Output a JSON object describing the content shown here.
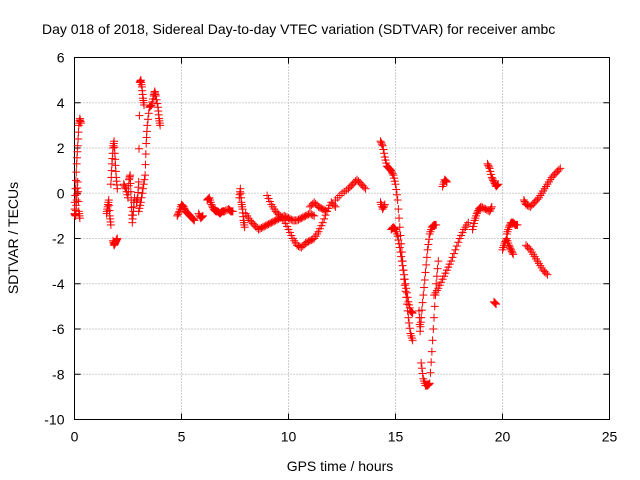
{
  "chart_data": {
    "type": "scatter",
    "title": "Day 018 of 2018, Sidereal Day-to-day VTEC variation (SDTVAR) for receiver ambc",
    "xlabel": "GPS time / hours",
    "ylabel": "SDTVAR / TECUs",
    "xlim": [
      0,
      25
    ],
    "ylim": [
      -10,
      6
    ],
    "xticks": [
      0,
      5,
      10,
      15,
      20,
      25
    ],
    "yticks": [
      -10,
      -8,
      -6,
      -4,
      -2,
      0,
      2,
      4,
      6
    ],
    "grid": true,
    "marker": "+",
    "color": "#ff0000",
    "series": [
      {
        "name": "SDTVAR",
        "segments": [
          [
            [
              0.0,
              -0.7
            ],
            [
              0.05,
              0.2
            ],
            [
              0.1,
              1.3
            ],
            [
              0.15,
              2.1
            ],
            [
              0.2,
              3.0
            ],
            [
              0.25,
              3.3
            ],
            [
              0.3,
              3.1
            ]
          ],
          [
            [
              0.0,
              -0.9
            ],
            [
              0.05,
              -1.0
            ],
            [
              0.1,
              -0.3
            ],
            [
              0.15,
              0.5
            ],
            [
              0.2,
              -0.8
            ],
            [
              0.25,
              -1.1
            ]
          ],
          [
            [
              1.5,
              -0.9
            ],
            [
              1.55,
              -0.6
            ],
            [
              1.6,
              -0.3
            ],
            [
              1.65,
              -1.0
            ],
            [
              1.7,
              -1.4
            ]
          ],
          [
            [
              1.7,
              0.4
            ],
            [
              1.75,
              1.3
            ],
            [
              1.8,
              2.0
            ],
            [
              1.85,
              2.3
            ],
            [
              1.9,
              1.5
            ],
            [
              1.95,
              0.7
            ],
            [
              2.0,
              0.2
            ]
          ],
          [
            [
              1.8,
              -2.1
            ],
            [
              1.85,
              -2.3
            ],
            [
              1.9,
              -2.2
            ],
            [
              1.95,
              -2.1
            ],
            [
              2.0,
              -2.0
            ]
          ],
          [
            [
              2.3,
              0.4
            ],
            [
              2.4,
              0.2
            ],
            [
              2.5,
              -0.2
            ],
            [
              2.55,
              0.6
            ],
            [
              2.6,
              0.8
            ],
            [
              2.65,
              -0.3
            ],
            [
              2.7,
              -1.3
            ],
            [
              2.75,
              -0.8
            ],
            [
              2.8,
              -0.2
            ]
          ],
          [
            [
              2.9,
              -0.4
            ],
            [
              2.95,
              -0.2
            ],
            [
              3.0,
              0.5
            ],
            [
              3.05,
              4.9
            ],
            [
              3.1,
              5.0
            ],
            [
              3.15,
              4.7
            ],
            [
              3.2,
              4.2
            ],
            [
              3.25,
              3.9
            ]
          ],
          [
            [
              3.0,
              -0.8
            ],
            [
              3.1,
              -0.4
            ],
            [
              3.2,
              0.2
            ],
            [
              3.3,
              0.8
            ],
            [
              3.35,
              2.2
            ],
            [
              3.4,
              3.0
            ],
            [
              3.5,
              3.8
            ],
            [
              3.6,
              3.9
            ],
            [
              3.7,
              4.3
            ],
            [
              3.75,
              4.5
            ],
            [
              3.8,
              4.3
            ],
            [
              3.9,
              3.8
            ],
            [
              3.95,
              3.3
            ],
            [
              4.0,
              3.0
            ]
          ],
          [
            [
              4.8,
              -1.0
            ],
            [
              4.9,
              -0.8
            ],
            [
              5.0,
              -0.5
            ],
            [
              5.1,
              -0.6
            ],
            [
              5.2,
              -0.8
            ],
            [
              5.3,
              -0.9
            ],
            [
              5.4,
              -1.0
            ],
            [
              5.5,
              -1.1
            ],
            [
              5.6,
              -1.2
            ]
          ],
          [
            [
              5.8,
              -0.9
            ],
            [
              5.9,
              -1.1
            ],
            [
              6.0,
              -1.0
            ]
          ],
          [
            [
              6.2,
              -0.3
            ],
            [
              6.3,
              -0.2
            ],
            [
              6.4,
              -0.5
            ],
            [
              6.5,
              -0.7
            ],
            [
              6.6,
              -0.8
            ],
            [
              6.7,
              -0.8
            ],
            [
              6.8,
              -0.9
            ],
            [
              6.9,
              -0.8
            ],
            [
              7.0,
              -0.8
            ],
            [
              7.2,
              -0.7
            ],
            [
              7.3,
              -0.8
            ],
            [
              7.4,
              -0.8
            ]
          ],
          [
            [
              7.7,
              -0.2
            ],
            [
              7.75,
              0.2
            ],
            [
              7.8,
              -0.4
            ],
            [
              7.85,
              -0.7
            ],
            [
              7.9,
              -1.2
            ],
            [
              7.95,
              -1.5
            ]
          ],
          [
            [
              8.0,
              -0.9
            ],
            [
              8.2,
              -1.2
            ],
            [
              8.4,
              -1.4
            ],
            [
              8.6,
              -1.6
            ],
            [
              8.8,
              -1.5
            ],
            [
              9.0,
              -1.4
            ],
            [
              9.2,
              -1.3
            ],
            [
              9.4,
              -1.2
            ],
            [
              9.6,
              -1.1
            ],
            [
              9.8,
              -1.0
            ],
            [
              10.0,
              -1.1
            ],
            [
              10.2,
              -1.2
            ],
            [
              10.4,
              -1.2
            ],
            [
              10.6,
              -1.1
            ],
            [
              10.8,
              -1.0
            ],
            [
              11.0,
              -0.9
            ],
            [
              11.2,
              -1.0
            ]
          ],
          [
            [
              9.0,
              -0.1
            ],
            [
              9.2,
              -0.5
            ],
            [
              9.4,
              -0.8
            ],
            [
              9.6,
              -1.0
            ],
            [
              9.8,
              -1.2
            ],
            [
              10.0,
              -1.6
            ],
            [
              10.2,
              -2.0
            ],
            [
              10.4,
              -2.3
            ],
            [
              10.6,
              -2.4
            ],
            [
              10.8,
              -2.2
            ],
            [
              11.0,
              -2.1
            ],
            [
              11.2,
              -2.0
            ],
            [
              11.4,
              -1.7
            ],
            [
              11.6,
              -1.3
            ],
            [
              11.8,
              -0.8
            ],
            [
              12.0,
              -0.4
            ],
            [
              12.2,
              -0.6
            ]
          ],
          [
            [
              11.0,
              -0.6
            ],
            [
              11.2,
              -0.4
            ],
            [
              11.4,
              -0.6
            ],
            [
              11.6,
              -0.7
            ],
            [
              11.8,
              -0.8
            ]
          ],
          [
            [
              12.2,
              -0.3
            ],
            [
              12.5,
              0.0
            ],
            [
              12.8,
              0.2
            ],
            [
              13.0,
              0.4
            ],
            [
              13.2,
              0.6
            ],
            [
              13.4,
              0.4
            ],
            [
              13.6,
              0.2
            ]
          ],
          [
            [
              14.3,
              2.3
            ],
            [
              14.4,
              2.1
            ],
            [
              14.5,
              1.6
            ],
            [
              14.6,
              1.2
            ],
            [
              14.7,
              1.1
            ],
            [
              14.8,
              1.0
            ],
            [
              14.9,
              0.8
            ],
            [
              15.0,
              0.4
            ],
            [
              15.1,
              -0.3
            ],
            [
              15.2,
              -1.5
            ],
            [
              15.3,
              -2.6
            ],
            [
              15.4,
              -3.8
            ],
            [
              15.5,
              -4.6
            ],
            [
              15.6,
              -5.5
            ],
            [
              15.7,
              -6.2
            ],
            [
              15.8,
              -6.5
            ]
          ],
          [
            [
              14.3,
              -0.4
            ],
            [
              14.4,
              -0.7
            ],
            [
              14.5,
              -0.5
            ]
          ],
          [
            [
              14.8,
              -1.6
            ],
            [
              14.9,
              -1.5
            ],
            [
              15.0,
              -1.6
            ],
            [
              15.1,
              -1.9
            ],
            [
              15.2,
              -2.4
            ],
            [
              15.3,
              -3.0
            ],
            [
              15.4,
              -3.6
            ],
            [
              15.5,
              -4.2
            ],
            [
              15.6,
              -4.8
            ],
            [
              15.7,
              -5.2
            ],
            [
              15.8,
              -5.3
            ]
          ],
          [
            [
              16.1,
              -5.2
            ],
            [
              16.15,
              -6.1
            ],
            [
              16.2,
              -5.5
            ],
            [
              16.3,
              -4.5
            ],
            [
              16.4,
              -3.5
            ],
            [
              16.5,
              -2.5
            ],
            [
              16.6,
              -1.8
            ],
            [
              16.7,
              -1.5
            ],
            [
              16.8,
              -1.4
            ],
            [
              16.9,
              -1.4
            ]
          ],
          [
            [
              16.2,
              -7.5
            ],
            [
              16.3,
              -8.2
            ],
            [
              16.4,
              -8.5
            ],
            [
              16.5,
              -8.5
            ],
            [
              16.6,
              -8.4
            ],
            [
              16.7,
              -7.0
            ],
            [
              16.8,
              -5.5
            ],
            [
              16.9,
              -4.0
            ],
            [
              17.0,
              -3.0
            ]
          ],
          [
            [
              16.8,
              -4.5
            ],
            [
              17.0,
              -4.2
            ],
            [
              17.2,
              -3.8
            ],
            [
              17.4,
              -3.4
            ],
            [
              17.6,
              -3.0
            ],
            [
              17.8,
              -2.5
            ],
            [
              18.0,
              -2.0
            ],
            [
              18.2,
              -1.6
            ],
            [
              18.4,
              -1.3
            ]
          ],
          [
            [
              17.2,
              0.3
            ],
            [
              17.3,
              0.6
            ],
            [
              17.4,
              0.5
            ]
          ],
          [
            [
              18.6,
              -1.6
            ],
            [
              18.7,
              -1.2
            ],
            [
              18.8,
              -0.9
            ],
            [
              18.9,
              -0.7
            ],
            [
              19.0,
              -0.6
            ],
            [
              19.2,
              -0.7
            ],
            [
              19.4,
              -0.8
            ],
            [
              19.5,
              -0.6
            ]
          ],
          [
            [
              19.3,
              1.3
            ],
            [
              19.4,
              1.1
            ],
            [
              19.5,
              0.7
            ],
            [
              19.6,
              0.5
            ],
            [
              19.7,
              0.3
            ],
            [
              19.8,
              0.4
            ]
          ],
          [
            [
              19.6,
              -4.8
            ],
            [
              19.7,
              -4.9
            ]
          ],
          [
            [
              20.0,
              -2.5
            ],
            [
              20.1,
              -2.2
            ],
            [
              20.2,
              -2.0
            ],
            [
              20.3,
              -2.3
            ],
            [
              20.4,
              -2.5
            ],
            [
              20.5,
              -2.7
            ]
          ],
          [
            [
              20.2,
              -1.8
            ],
            [
              20.3,
              -1.5
            ],
            [
              20.4,
              -1.3
            ],
            [
              20.5,
              -1.3
            ],
            [
              20.6,
              -1.4
            ],
            [
              20.7,
              -1.4
            ]
          ],
          [
            [
              21.0,
              -0.3
            ],
            [
              21.1,
              -0.5
            ],
            [
              21.3,
              -0.6
            ],
            [
              21.5,
              -0.4
            ],
            [
              21.7,
              -0.2
            ],
            [
              21.9,
              0.1
            ],
            [
              22.1,
              0.4
            ],
            [
              22.3,
              0.7
            ],
            [
              22.5,
              0.9
            ],
            [
              22.7,
              1.1
            ]
          ],
          [
            [
              21.1,
              -2.3
            ],
            [
              21.3,
              -2.5
            ],
            [
              21.5,
              -2.8
            ],
            [
              21.7,
              -3.1
            ],
            [
              21.9,
              -3.4
            ],
            [
              22.1,
              -3.6
            ]
          ]
        ]
      }
    ]
  }
}
